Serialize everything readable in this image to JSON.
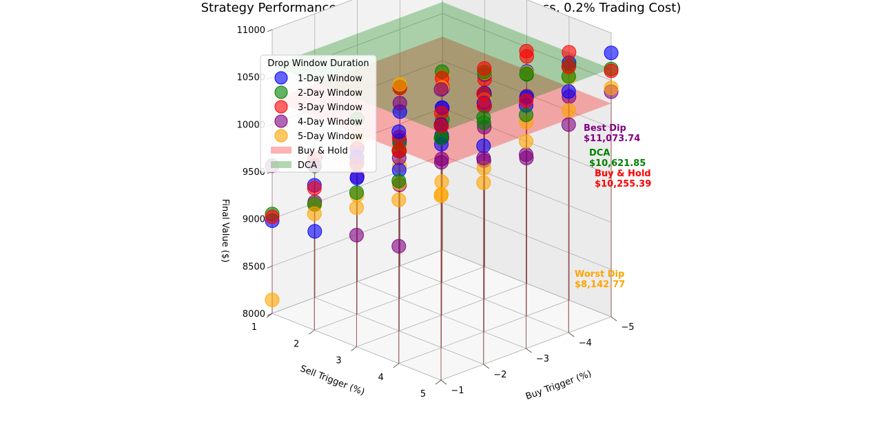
{
  "chart_data": {
    "type": "scatter",
    "title": "Strategy Performance Comparison - KO (15.0% Stop Loss, 0.2% Trading Cost)",
    "xlabel": "Buy Trigger (%)",
    "ylabel": "Sell Trigger (%)",
    "zlabel": "Final Value ($)",
    "x_ticks": [
      "−5",
      "−4",
      "−3",
      "−2",
      "−1"
    ],
    "y_ticks": [
      "1",
      "2",
      "3",
      "4",
      "5"
    ],
    "z_ticks": [
      "8000",
      "8500",
      "9000",
      "9500",
      "10000",
      "10500",
      "11000"
    ],
    "xlim": [
      -5,
      -1
    ],
    "ylim": [
      1,
      5
    ],
    "zlim": [
      8000,
      11000
    ],
    "legend": {
      "title": "Drop Window Duration",
      "position": "upper-left",
      "entries": [
        {
          "label": "1-Day Window",
          "color": "#0000ff",
          "marker": "circle"
        },
        {
          "label": "2-Day Window",
          "color": "#008000",
          "marker": "circle"
        },
        {
          "label": "3-Day Window",
          "color": "#ff0000",
          "marker": "circle"
        },
        {
          "label": "4-Day Window",
          "color": "#800080",
          "marker": "circle"
        },
        {
          "label": "5-Day Window",
          "color": "#ffa500",
          "marker": "circle"
        },
        {
          "label": "Buy & Hold",
          "color": "#ff8080",
          "marker": "plane"
        },
        {
          "label": "DCA",
          "color": "#80c080",
          "marker": "plane"
        }
      ]
    },
    "reference_planes": [
      {
        "name": "Buy & Hold",
        "value": 10255.39,
        "color": "#ff0000"
      },
      {
        "name": "DCA",
        "value": 10621.85,
        "color": "#008000"
      }
    ],
    "annotations": [
      {
        "label": "Best Dip",
        "value_text": "$11,073.74",
        "color": "#800080"
      },
      {
        "label": "DCA",
        "value_text": "$10,621.85",
        "color": "#008000"
      },
      {
        "label": "Buy & Hold",
        "value_text": "$10,255.39",
        "color": "#ff0000"
      },
      {
        "label": "Worst Dip",
        "value_text": "$8,142.77",
        "color": "#ffa500"
      }
    ],
    "series": [
      {
        "name": "1-Day Window",
        "color": "#0000ff",
        "points": [
          [
            -1,
            1,
            8980
          ],
          [
            -1,
            2,
            9530
          ],
          [
            -1,
            3,
            10010
          ],
          [
            -1,
            4,
            10450
          ],
          [
            -1,
            5,
            10700
          ],
          [
            -2,
            1,
            8700
          ],
          [
            -2,
            2,
            9440
          ],
          [
            -2,
            3,
            9700
          ],
          [
            -2,
            4,
            10150
          ],
          [
            -2,
            5,
            10310
          ],
          [
            -3,
            1,
            9410
          ],
          [
            -3,
            2,
            9670
          ],
          [
            -3,
            3,
            9900
          ],
          [
            -3,
            4,
            10420
          ],
          [
            -3,
            5,
            10570
          ],
          [
            -4,
            1,
            9630
          ],
          [
            -4,
            2,
            9850
          ],
          [
            -4,
            3,
            10180
          ],
          [
            -4,
            4,
            10310
          ],
          [
            -4,
            5,
            10550
          ],
          [
            -5,
            1,
            9710
          ],
          [
            -5,
            2,
            10030
          ],
          [
            -5,
            3,
            10240
          ],
          [
            -5,
            4,
            10510
          ],
          [
            -5,
            5,
            10790
          ]
        ]
      },
      {
        "name": "2-Day Window",
        "color": "#008000",
        "points": [
          [
            -1,
            1,
            9050
          ],
          [
            -1,
            2,
            9330
          ],
          [
            -1,
            3,
            9630
          ],
          [
            -1,
            4,
            9930
          ],
          [
            -1,
            5,
            10560
          ],
          [
            -2,
            1,
            9390
          ],
          [
            -2,
            2,
            9610
          ],
          [
            -2,
            3,
            9900
          ],
          [
            -2,
            4,
            10360
          ],
          [
            -2,
            5,
            10610
          ],
          [
            -3,
            1,
            9720
          ],
          [
            -3,
            2,
            9640
          ],
          [
            -3,
            3,
            9880
          ],
          [
            -3,
            4,
            10210
          ],
          [
            -3,
            5,
            10470
          ],
          [
            -4,
            1,
            9890
          ],
          [
            -4,
            2,
            10230
          ],
          [
            -4,
            3,
            10400
          ],
          [
            -4,
            4,
            10560
          ],
          [
            -4,
            5,
            10710
          ],
          [
            -5,
            1,
            9380
          ],
          [
            -5,
            2,
            9820
          ],
          [
            -5,
            3,
            10210
          ],
          [
            -5,
            4,
            10480
          ],
          [
            -5,
            5,
            10620
          ]
        ]
      },
      {
        "name": "3-Day Window",
        "color": "#ff0000",
        "points": [
          [
            -1,
            1,
            9020
          ],
          [
            -1,
            2,
            9500
          ],
          [
            -1,
            3,
            9930
          ],
          [
            -1,
            4,
            10250
          ],
          [
            -1,
            5,
            10690
          ],
          [
            -2,
            1,
            9470
          ],
          [
            -2,
            2,
            9750
          ],
          [
            -2,
            3,
            10050
          ],
          [
            -2,
            4,
            10480
          ],
          [
            -2,
            5,
            10860
          ],
          [
            -3,
            1,
            9310
          ],
          [
            -3,
            2,
            9560
          ],
          [
            -3,
            3,
            10000
          ],
          [
            -3,
            4,
            10390
          ],
          [
            -3,
            5,
            10620
          ],
          [
            -4,
            1,
            9880
          ],
          [
            -4,
            2,
            10160
          ],
          [
            -4,
            3,
            10440
          ],
          [
            -4,
            4,
            10800
          ],
          [
            -4,
            5,
            10810
          ],
          [
            -5,
            1,
            9730
          ],
          [
            -5,
            2,
            9980
          ],
          [
            -5,
            3,
            10400
          ],
          [
            -5,
            4,
            10620
          ],
          [
            -5,
            5,
            10600
          ]
        ]
      },
      {
        "name": "4-Day Window",
        "color": "#800080",
        "points": [
          [
            -1,
            1,
            9560
          ],
          [
            -1,
            2,
            9740
          ],
          [
            -1,
            3,
            9180
          ],
          [
            -1,
            4,
            9240
          ],
          [
            -1,
            5,
            11073.74
          ],
          [
            -2,
            1,
            9010
          ],
          [
            -2,
            2,
            9590
          ],
          [
            -2,
            3,
            9830
          ],
          [
            -2,
            4,
            9960
          ],
          [
            -2,
            5,
            10180
          ],
          [
            -3,
            1,
            9110
          ],
          [
            -3,
            2,
            9200
          ],
          [
            -3,
            3,
            9650
          ],
          [
            -3,
            4,
            9810
          ],
          [
            -3,
            5,
            10050
          ],
          [
            -4,
            1,
            9720
          ],
          [
            -4,
            2,
            9530
          ],
          [
            -4,
            3,
            9820
          ],
          [
            -4,
            4,
            9670
          ],
          [
            -4,
            5,
            10200
          ],
          [
            -5,
            1,
            9500
          ],
          [
            -5,
            2,
            9700
          ],
          [
            -5,
            3,
            9980
          ],
          [
            -5,
            4,
            10150
          ],
          [
            -5,
            5,
            10380
          ]
        ]
      },
      {
        "name": "5-Day Window",
        "color": "#ffa500",
        "points": [
          [
            -1,
            1,
            8142.77
          ],
          [
            -1,
            2,
            9230
          ],
          [
            -1,
            3,
            9470
          ],
          [
            -1,
            4,
            9730
          ],
          [
            -1,
            5,
            9950
          ],
          [
            -2,
            1,
            8980
          ],
          [
            -2,
            2,
            9260
          ],
          [
            -2,
            3,
            9560
          ],
          [
            -2,
            4,
            9620
          ],
          [
            -2,
            5,
            9920
          ],
          [
            -3,
            1,
            9510
          ],
          [
            -3,
            2,
            9400
          ],
          [
            -3,
            3,
            9410
          ],
          [
            -3,
            4,
            9730
          ],
          [
            -3,
            5,
            10190
          ],
          [
            -4,
            1,
            9920
          ],
          [
            -4,
            2,
            10060
          ],
          [
            -4,
            3,
            10110
          ],
          [
            -4,
            4,
            10050
          ],
          [
            -4,
            5,
            10350
          ],
          [
            -5,
            1,
            9850
          ],
          [
            -5,
            2,
            10050
          ],
          [
            -5,
            3,
            10230
          ],
          [
            -5,
            4,
            10350
          ],
          [
            -5,
            5,
            10420
          ]
        ]
      }
    ]
  }
}
